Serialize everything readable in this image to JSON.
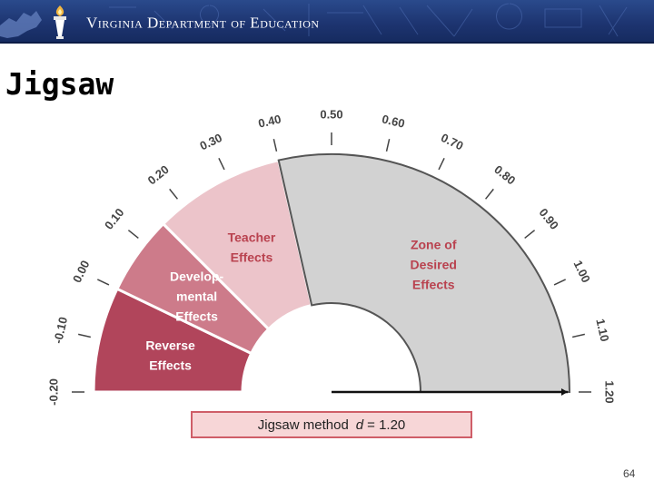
{
  "header": {
    "department": "Virginia Department of Education",
    "banner_color": "#1d3470"
  },
  "slide": {
    "title": "Jigsaw",
    "method_label": "Jigsaw method",
    "effect_symbol": "d",
    "effect_value": "= 1.20",
    "page_number": "64"
  },
  "chart_data": {
    "type": "gauge",
    "value": 1.2,
    "scale_min": -0.2,
    "scale_max": 1.2,
    "ticks": [
      "-0.20",
      "-0.10",
      "0.00",
      "0.10",
      "0.20",
      "0.30",
      "0.40",
      "0.50",
      "0.60",
      "0.70",
      "0.80",
      "0.90",
      "1.00",
      "1.10",
      "1.20"
    ],
    "zones": [
      {
        "lines": [
          "Reverse",
          "Effects"
        ],
        "from": -0.2,
        "to": 0.0,
        "color": "#b1455b"
      },
      {
        "lines": [
          "Develop-",
          "mental",
          "Effects"
        ],
        "from": 0.0,
        "to": 0.15,
        "color": "#cd7b8a"
      },
      {
        "lines": [
          "Teacher",
          "Effects"
        ],
        "from": 0.15,
        "to": 0.4,
        "color": "#ecc4ca"
      },
      {
        "lines": [
          "Zone of",
          "Desired",
          "Effects"
        ],
        "from": 0.4,
        "to": 1.2,
        "color": "#d2d2d2"
      }
    ]
  }
}
